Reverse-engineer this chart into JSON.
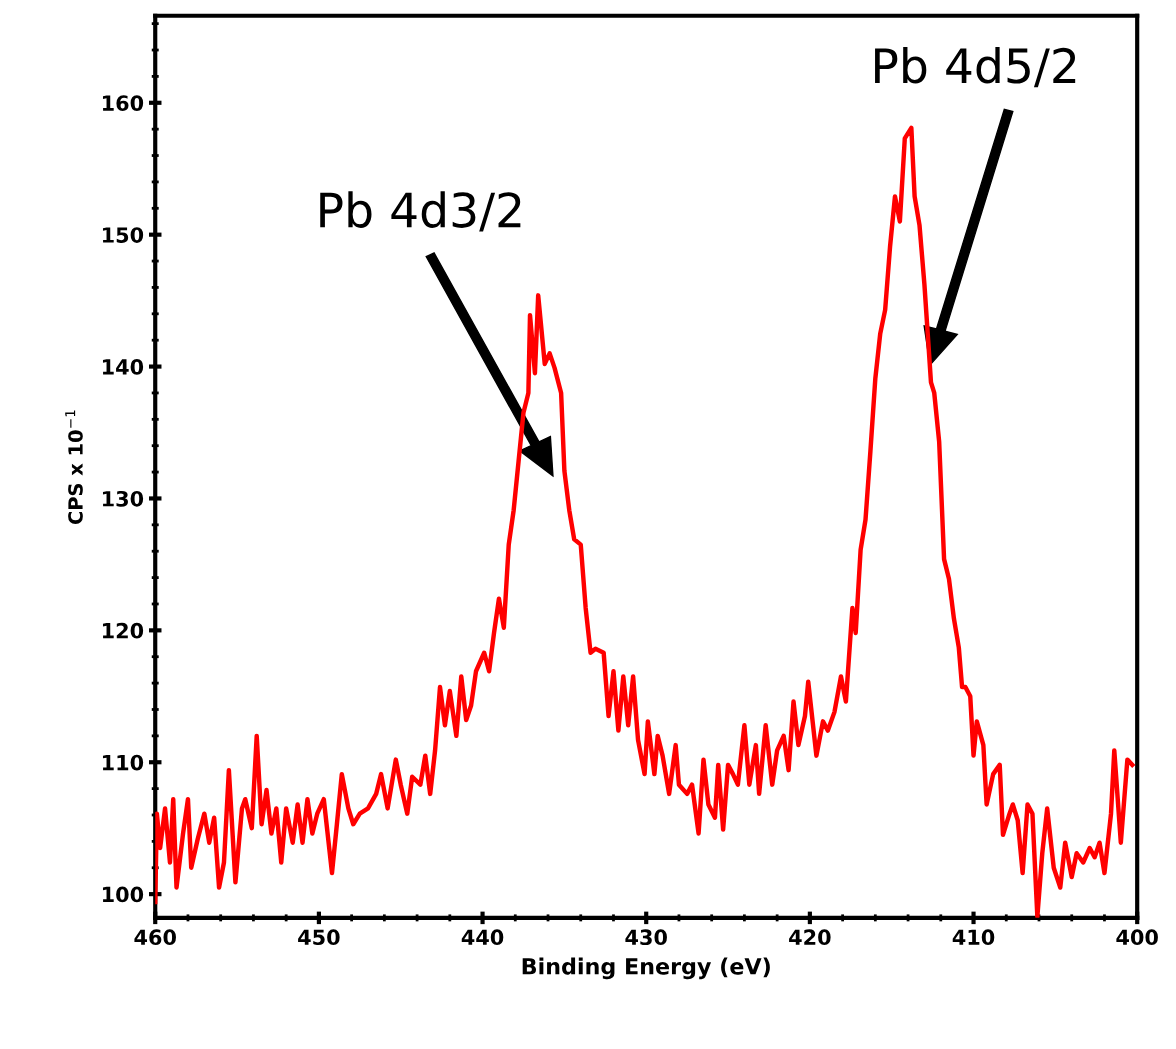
{
  "chart_data": {
    "type": "line",
    "xlabel": "Binding Energy (eV)",
    "ylabel": "CPS x 10$^{−1}$",
    "xlim": [
      460,
      400
    ],
    "xticks": [
      460,
      450,
      440,
      430,
      420,
      410,
      400
    ],
    "ylim": [
      98.2,
      166.6
    ],
    "yticks": [
      100,
      110,
      120,
      130,
      140,
      150,
      160
    ],
    "grid": false,
    "legend": false,
    "marker": "none",
    "line_style": "solid",
    "annotations": [
      "Pb 4d3/2",
      "Pb 4d5/2"
    ],
    "series": [
      {
        "color": "#ff0000",
        "x": [
          460.0,
          459.9,
          459.7,
          459.4,
          459.1,
          458.9,
          458.7,
          458.3,
          458.0,
          457.8,
          457.4,
          457.0,
          456.7,
          456.4,
          456.1,
          455.8,
          455.5,
          455.1,
          454.7,
          454.5,
          454.1,
          453.8,
          453.5,
          453.2,
          452.9,
          452.6,
          452.3,
          452.0,
          451.6,
          451.3,
          451.0,
          450.7,
          450.4,
          450.1,
          449.7,
          449.2,
          448.9,
          448.6,
          448.2,
          447.9,
          447.5,
          447.0,
          446.5,
          446.2,
          445.8,
          445.3,
          445.0,
          444.6,
          444.3,
          443.8,
          443.5,
          443.2,
          442.9,
          442.6,
          442.3,
          442.0,
          441.6,
          441.3,
          441.0,
          440.7,
          440.4,
          439.9,
          439.6,
          439.3,
          439.0,
          438.7,
          438.4,
          438.1,
          437.8,
          437.5,
          437.2,
          437.1,
          436.8,
          436.6,
          436.2,
          435.9,
          435.6,
          435.2,
          435.0,
          434.7,
          434.4,
          434.0,
          433.7,
          433.4,
          433.1,
          432.6,
          432.3,
          432.0,
          431.7,
          431.4,
          431.1,
          430.8,
          430.5,
          430.1,
          429.9,
          429.5,
          429.3,
          429.0,
          428.6,
          428.2,
          428.0,
          427.5,
          427.2,
          426.8,
          426.5,
          426.2,
          425.8,
          425.6,
          425.3,
          425.0,
          424.7,
          424.4,
          424.0,
          423.7,
          423.3,
          423.1,
          422.7,
          422.3,
          422.0,
          421.6,
          421.3,
          421.0,
          420.7,
          420.3,
          420.1,
          419.6,
          419.2,
          418.9,
          418.5,
          418.1,
          417.8,
          417.4,
          417.2,
          416.9,
          416.6,
          416.3,
          416.0,
          415.7,
          415.4,
          415.1,
          414.8,
          414.5,
          414.2,
          413.8,
          413.6,
          413.3,
          413.0,
          412.6,
          412.4,
          412.1,
          411.8,
          411.5,
          411.2,
          410.9,
          410.7,
          410.5,
          410.2,
          410.0,
          409.8,
          409.4,
          409.2,
          408.8,
          408.4,
          408.2,
          407.8,
          407.6,
          407.3,
          407.0,
          406.7,
          406.4,
          406.1,
          405.8,
          405.5,
          405.1,
          404.7,
          404.4,
          404.0,
          403.7,
          403.3,
          402.9,
          402.6,
          402.3,
          402.0,
          401.6,
          401.4,
          401.0,
          400.6,
          400.3
        ],
        "values": [
          99.4,
          106.1,
          103.5,
          106.5,
          102.4,
          107.2,
          100.5,
          104.6,
          107.2,
          102.0,
          104.2,
          106.1,
          103.9,
          105.8,
          100.5,
          102.4,
          109.4,
          100.9,
          106.5,
          107.2,
          105.0,
          112.0,
          105.3,
          107.9,
          104.6,
          106.5,
          102.4,
          106.5,
          103.9,
          106.8,
          103.9,
          107.2,
          104.6,
          106.1,
          107.2,
          101.6,
          105.3,
          109.1,
          106.5,
          105.3,
          106.1,
          106.5,
          107.6,
          109.1,
          106.5,
          110.2,
          108.3,
          106.1,
          108.9,
          108.3,
          110.5,
          107.6,
          110.9,
          115.7,
          112.8,
          115.4,
          112.0,
          116.5,
          113.2,
          114.3,
          116.9,
          118.3,
          116.9,
          119.8,
          122.4,
          120.2,
          126.5,
          129.1,
          132.8,
          136.5,
          138.0,
          143.9,
          139.5,
          145.4,
          140.2,
          141.0,
          139.9,
          138.0,
          132.1,
          129.1,
          126.9,
          126.5,
          121.7,
          118.3,
          118.6,
          118.3,
          113.5,
          116.9,
          112.4,
          116.5,
          112.8,
          116.5,
          111.7,
          109.1,
          113.1,
          109.1,
          112.0,
          110.5,
          107.6,
          111.3,
          108.3,
          107.6,
          108.3,
          104.6,
          110.2,
          106.8,
          105.8,
          109.8,
          104.9,
          109.8,
          109.1,
          108.3,
          112.8,
          108.3,
          111.3,
          107.6,
          112.8,
          108.3,
          110.9,
          112.0,
          109.4,
          114.6,
          111.3,
          113.5,
          116.1,
          110.5,
          113.1,
          112.4,
          113.8,
          116.5,
          114.6,
          121.7,
          119.8,
          126.1,
          128.4,
          133.6,
          139.1,
          142.5,
          144.3,
          149.1,
          152.9,
          151.0,
          157.3,
          158.1,
          152.9,
          150.7,
          146.2,
          138.8,
          138.0,
          134.3,
          125.4,
          123.9,
          120.9,
          118.7,
          115.7,
          115.7,
          115.0,
          110.5,
          113.1,
          111.3,
          106.8,
          109.1,
          109.8,
          104.5,
          106.1,
          106.8,
          105.6,
          101.6,
          106.8,
          106.1,
          98.3,
          103.1,
          106.5,
          102.0,
          100.5,
          103.9,
          101.3,
          103.1,
          102.4,
          103.5,
          102.8,
          103.9,
          101.6,
          106.1,
          110.9,
          103.9,
          110.2,
          109.8
        ]
      }
    ]
  }
}
